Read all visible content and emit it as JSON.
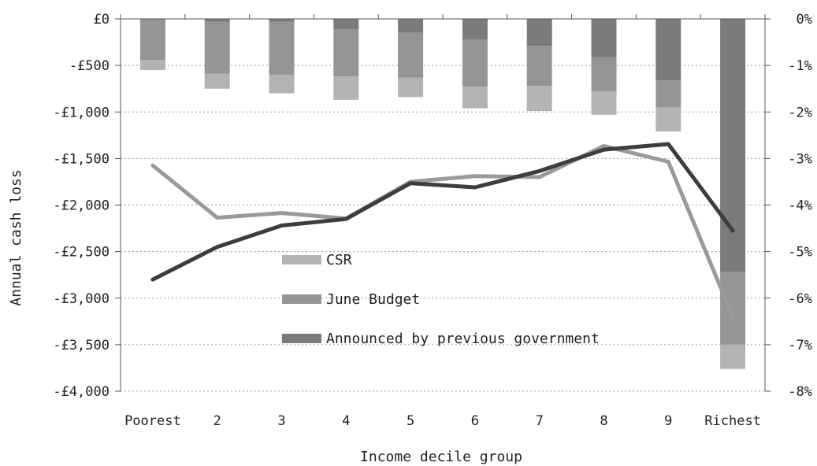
{
  "chart_data": {
    "type": "bar",
    "title": "",
    "xlabel": "Income decile group",
    "ylabel": "Annual cash loss",
    "ylabel_right": "",
    "categories": [
      "Poorest",
      "2",
      "3",
      "4",
      "5",
      "6",
      "7",
      "8",
      "9",
      "Richest"
    ],
    "ylim": [
      -4000,
      0
    ],
    "y_ticks": [
      0,
      -500,
      -1000,
      -1500,
      -2000,
      -2500,
      -3000,
      -3500,
      -4000
    ],
    "y_tick_labels": [
      "£0",
      "-£500",
      "-£1,000",
      "-£1,500",
      "-£2,000",
      "-£2,500",
      "-£3,000",
      "-£3,500",
      "-£4,000"
    ],
    "ylim_right": [
      -8,
      0
    ],
    "y_ticks_right": [
      0,
      -1,
      -2,
      -3,
      -4,
      -5,
      -6,
      -7,
      -8
    ],
    "y_tick_labels_right": [
      "0%",
      "-1%",
      "-2%",
      "-3%",
      "-4%",
      "-5%",
      "-6%",
      "-7%",
      "-8%"
    ],
    "grid": true,
    "legend_position": "center-left",
    "bar_series": [
      {
        "name": "Announced by previous government",
        "color": "#7b7b7b",
        "values": [
          0,
          -30,
          -30,
          -110,
          -150,
          -220,
          -290,
          -410,
          -660,
          -2720
        ]
      },
      {
        "name": "June Budget",
        "color": "#959595",
        "values": [
          -440,
          -560,
          -570,
          -510,
          -480,
          -510,
          -430,
          -370,
          -290,
          -780
        ]
      },
      {
        "name": "CSR",
        "color": "#b3b3b3",
        "values": [
          -110,
          -160,
          -200,
          -250,
          -210,
          -230,
          -270,
          -250,
          -260,
          -260
        ]
      }
    ],
    "line_series": [
      {
        "name": "CSR",
        "color": "#9a9a9a",
        "axis": "right",
        "values": [
          -3.15,
          -4.27,
          -4.17,
          -4.29,
          -3.5,
          -3.38,
          -3.4,
          -2.73,
          -3.07,
          -6.4
        ]
      },
      {
        "name": "Announced by previous government",
        "color": "#3d3d3d",
        "axis": "right",
        "values": [
          -5.6,
          -4.9,
          -4.44,
          -4.3,
          -3.53,
          -3.62,
          -3.27,
          -2.81,
          -2.69,
          -4.55
        ]
      }
    ]
  }
}
